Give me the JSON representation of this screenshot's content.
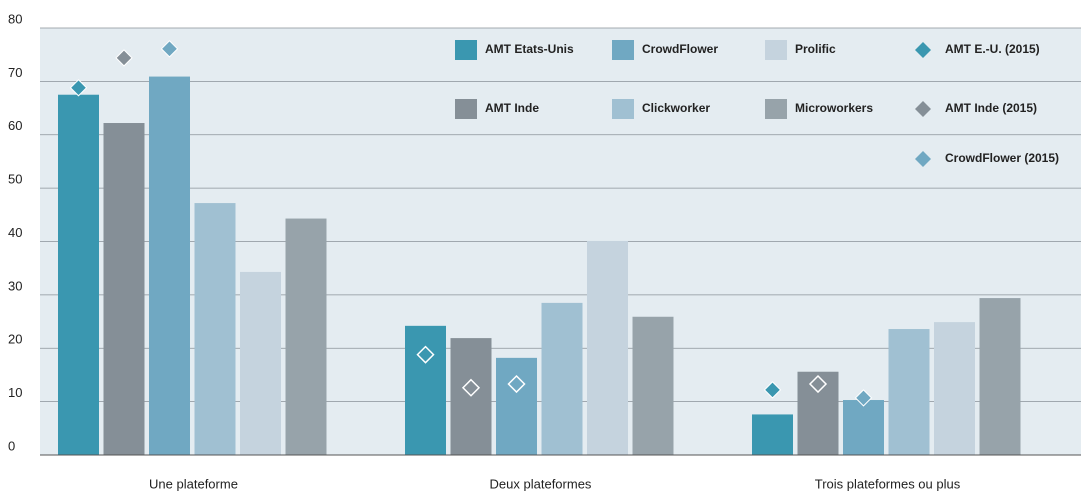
{
  "chart_data": {
    "type": "bar",
    "categories": [
      "Une plateforme",
      "Deux plateformes",
      "Trois plateformes ou plus"
    ],
    "series": [
      {
        "name": "AMT Etats-Unis",
        "color": "#3a97b0",
        "values": [
          67.5,
          24.2,
          7.6
        ]
      },
      {
        "name": "AMT Inde",
        "color": "#858f97",
        "values": [
          62.2,
          21.9,
          15.6
        ]
      },
      {
        "name": "CrowdFlower",
        "color": "#70a8c2",
        "values": [
          70.9,
          18.2,
          10.3
        ]
      },
      {
        "name": "Clickworker",
        "color": "#a0c0d2",
        "values": [
          47.2,
          28.5,
          23.6
        ]
      },
      {
        "name": "Prolific",
        "color": "#c5d3de",
        "values": [
          34.3,
          40.1,
          24.9
        ]
      },
      {
        "name": "Microworkers",
        "color": "#97a3aa",
        "values": [
          44.3,
          25.9,
          29.4
        ]
      }
    ],
    "points": [
      {
        "name": "AMT E.-U. (2015)",
        "color": "#3a97b0",
        "values": [
          68.8,
          18.8,
          12.2
        ]
      },
      {
        "name": "AMT Inde (2015)",
        "color": "#858f97",
        "values": [
          74.4,
          12.6,
          13.3
        ]
      },
      {
        "name": "CrowdFlower (2015)",
        "color": "#70a8c2",
        "values": [
          76.1,
          13.3,
          10.7
        ]
      }
    ],
    "ylim": [
      0,
      80
    ],
    "yticks": [
      0,
      10,
      20,
      30,
      40,
      50,
      60,
      70,
      80
    ],
    "grid": true
  }
}
